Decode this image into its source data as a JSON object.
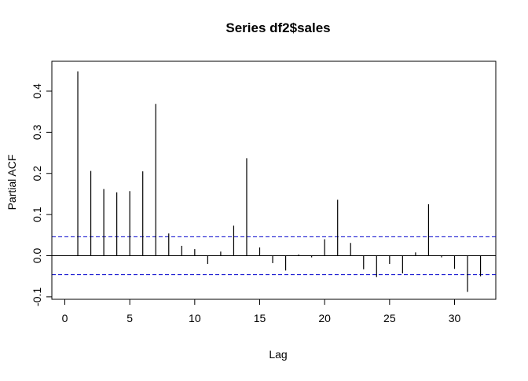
{
  "chart_data": {
    "type": "bar",
    "title": "Series  df2$sales",
    "xlabel": "Lag",
    "ylabel": "Partial ACF",
    "xlim": [
      -0.5,
      33
    ],
    "ylim": [
      -0.1,
      0.45
    ],
    "x_ticks": [
      0,
      5,
      10,
      15,
      20,
      25,
      30
    ],
    "y_ticks": [
      -0.1,
      0.0,
      0.1,
      0.2,
      0.3,
      0.4
    ],
    "x_tick_labels": [
      "0",
      "5",
      "10",
      "15",
      "20",
      "25",
      "30"
    ],
    "y_tick_labels": [
      "-0.1",
      "0.0",
      "0.1",
      "0.2",
      "0.3",
      "0.4"
    ],
    "confidence_bounds": [
      0.046,
      -0.046
    ],
    "zero_line": 0,
    "colors": {
      "spikes": "#000000",
      "bounds": "#0000cc",
      "axes": "#000000"
    },
    "grid": false,
    "lags": [
      1,
      2,
      3,
      4,
      5,
      6,
      7,
      8,
      9,
      10,
      11,
      12,
      13,
      14,
      15,
      16,
      17,
      18,
      19,
      20,
      21,
      22,
      23,
      24,
      25,
      26,
      27,
      28,
      29,
      30,
      31,
      32
    ],
    "values": [
      0.448,
      0.206,
      0.162,
      0.154,
      0.157,
      0.205,
      0.369,
      0.054,
      0.024,
      0.016,
      -0.02,
      0.01,
      0.073,
      0.237,
      0.02,
      -0.018,
      -0.036,
      0.003,
      -0.004,
      0.04,
      0.136,
      0.031,
      -0.033,
      -0.052,
      -0.02,
      -0.043,
      0.008,
      0.125,
      -0.004,
      -0.032,
      -0.088,
      -0.05
    ]
  }
}
